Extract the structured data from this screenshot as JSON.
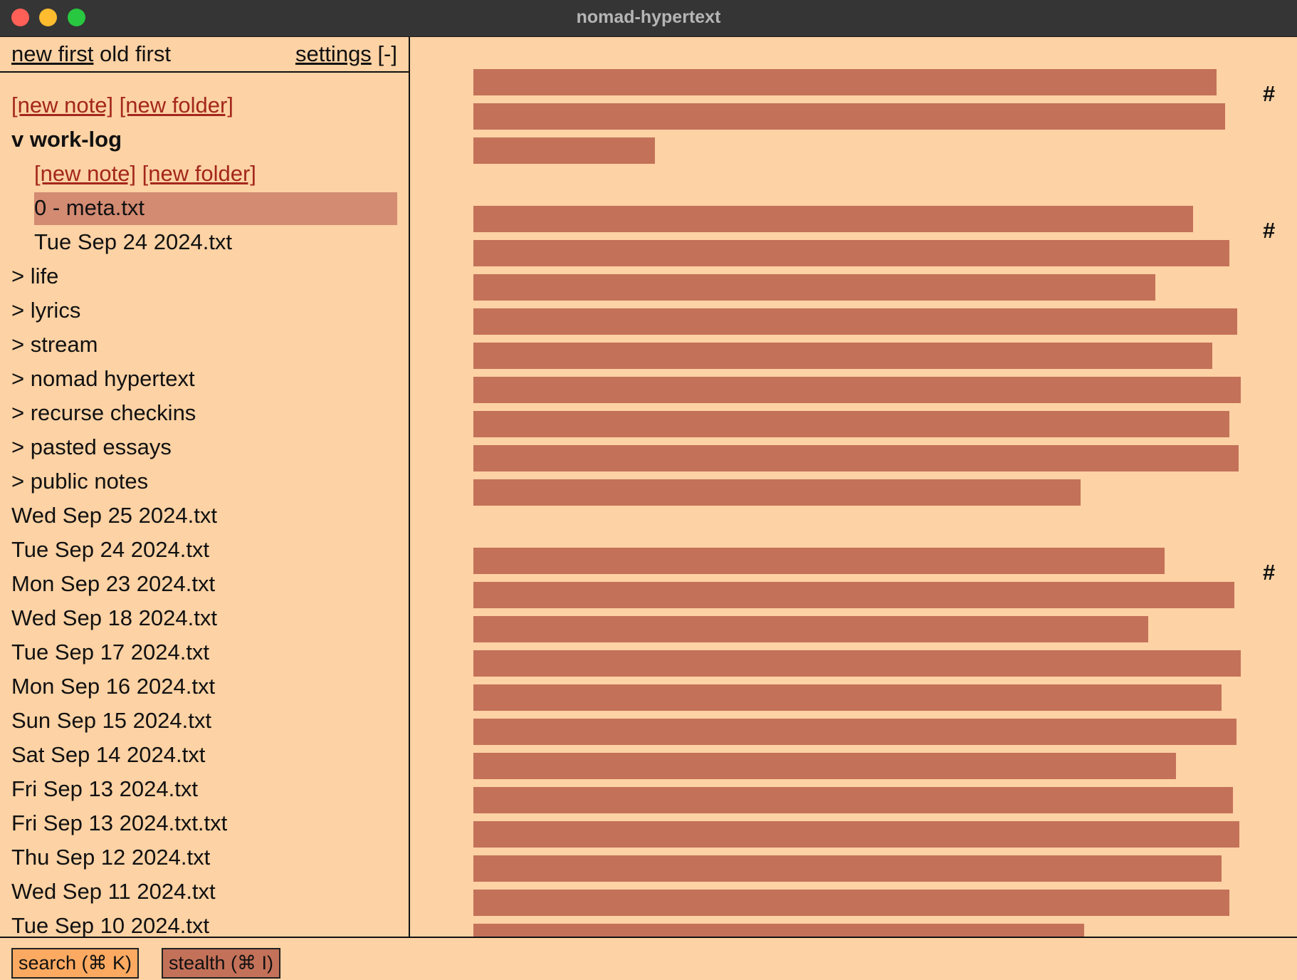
{
  "window": {
    "title": "nomad-hypertext"
  },
  "sidebar": {
    "header": {
      "new_first": "new first",
      "old_first": "old first",
      "settings": "settings",
      "collapse": "[-]"
    },
    "root_new_note": "[new note]",
    "root_new_folder": "[new folder]",
    "open_folder": {
      "label": "v work-log",
      "new_note": "[new note]",
      "new_folder": "[new folder]",
      "children": [
        "0 - meta.txt",
        "Tue Sep 24 2024.txt"
      ],
      "selected_index": 0
    },
    "folders": [
      "> life",
      "> lyrics",
      "> stream",
      "> nomad hypertext",
      "> recurse checkins",
      "> pasted essays",
      "> public notes"
    ],
    "files": [
      "Wed Sep 25 2024.txt",
      "Tue Sep 24 2024.txt",
      "Mon Sep 23 2024.txt",
      "Wed Sep 18 2024.txt",
      "Tue Sep 17 2024.txt",
      "Mon Sep 16 2024.txt",
      "Sun Sep 15 2024.txt",
      "Sat Sep 14 2024.txt",
      "Fri Sep 13 2024.txt",
      "Fri Sep 13 2024.txt.txt",
      "Thu Sep 12 2024.txt",
      "Wed Sep 11 2024.txt",
      "Tue Sep 10 2024.txt"
    ]
  },
  "content": {
    "mode": "stealth",
    "bar_color": "#c47159",
    "paragraphs": [
      {
        "marker": "#",
        "line_fill": [
          0.968,
          0.98,
          0.237
        ]
      },
      {
        "marker": "#",
        "line_fill": [
          0.938,
          0.985,
          0.889,
          0.995,
          0.963,
          1.0,
          0.985,
          0.997,
          0.791
        ]
      },
      {
        "marker": "#",
        "line_fill": [
          0.901,
          0.992,
          0.879,
          1.0,
          0.975,
          0.994,
          0.916,
          0.99,
          0.998,
          0.975,
          0.985,
          0.796
        ]
      }
    ]
  },
  "bottombar": {
    "search": "search (⌘ K)",
    "stealth": "stealth (⌘ I)"
  },
  "colors": {
    "background": "#fdd2a4",
    "accent_link": "#a3271c",
    "selection": "#d38b72",
    "search_button": "#fcaa62",
    "stealth_button": "#c47159"
  }
}
